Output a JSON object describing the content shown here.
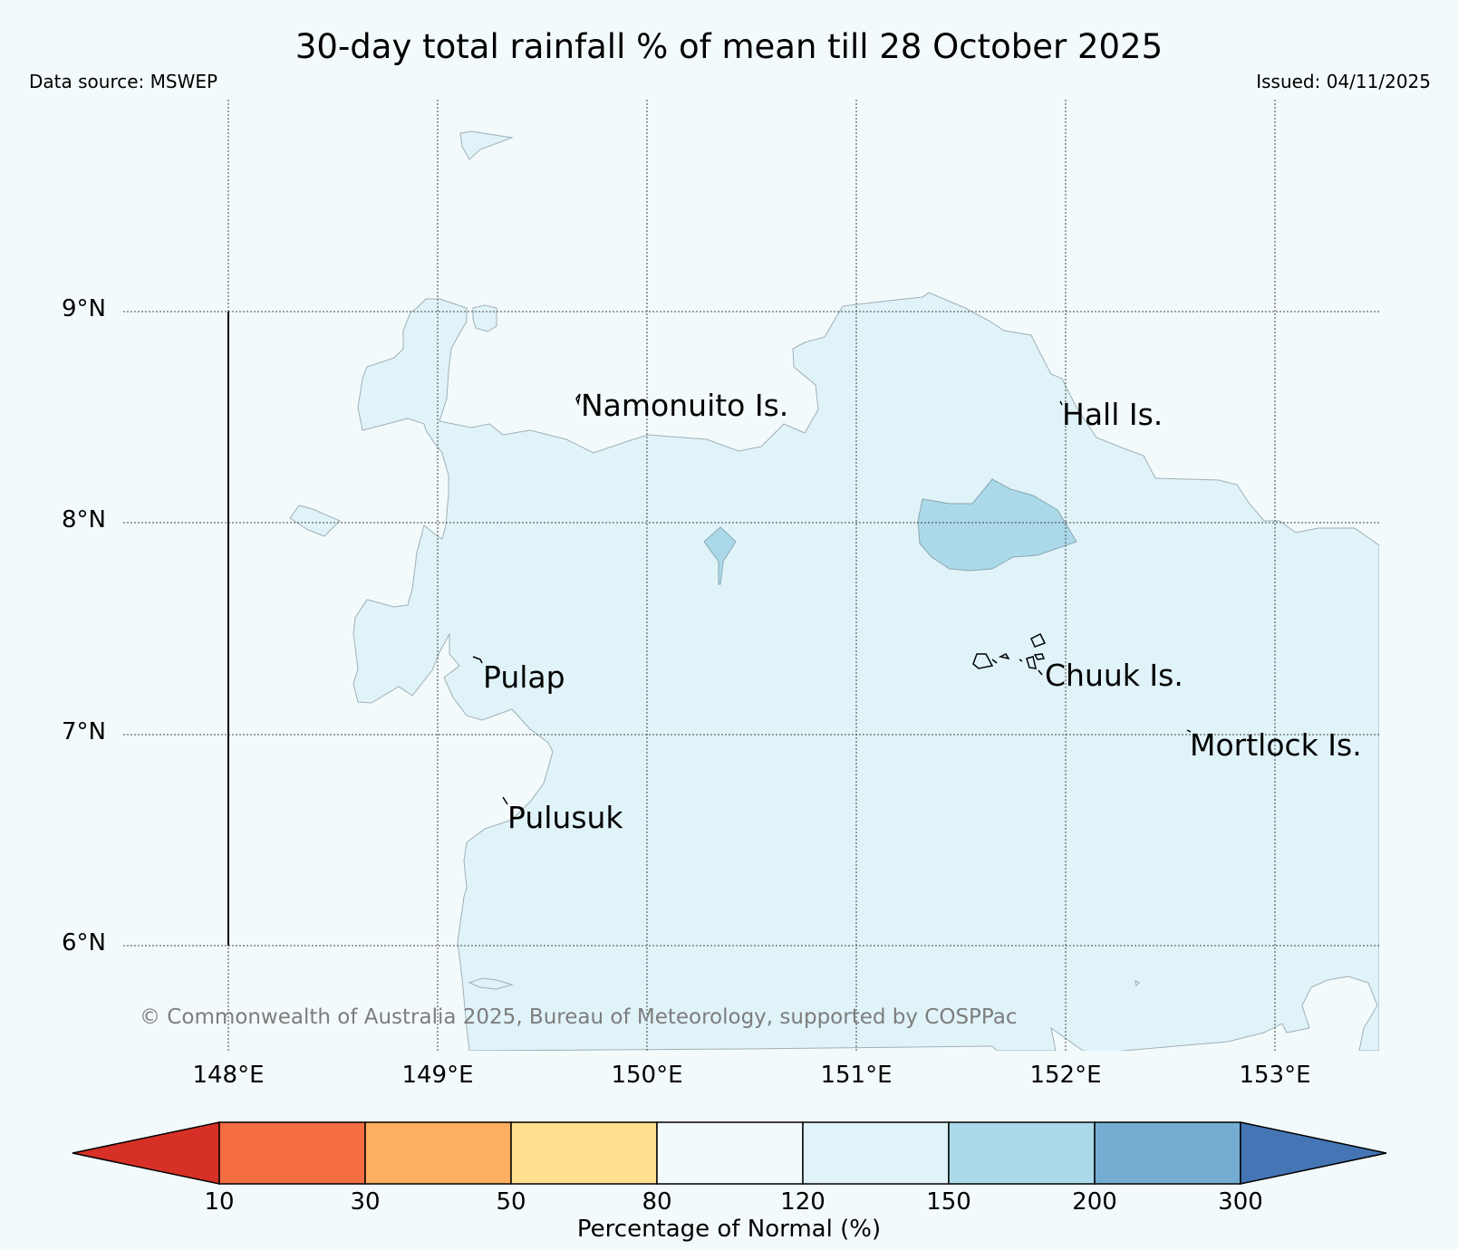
{
  "title": "30-day total rainfall % of mean till 28 October 2025",
  "data_source": "Data source: MSWEP",
  "issued": "Issued: 04/11/2025",
  "copyright": "© Commonwealth of Australia 2025, Bureau of Meteorology, supported by COSPPac",
  "latitude_labels": [
    "9°N",
    "8°N",
    "7°N",
    "6°N"
  ],
  "longitude_labels": [
    "148°E",
    "149°E",
    "150°E",
    "151°E",
    "152°E",
    "153°E"
  ],
  "places": {
    "namonuito": "Namonuito Is.",
    "hall": "Hall Is.",
    "pulap": "Pulap",
    "chuuk": "Chuuk Is.",
    "mortlock": "Mortlock Is.",
    "pulusuk": "Pulusuk"
  },
  "colorbar": {
    "title": "Percentage of Normal (%)",
    "ticks": [
      "10",
      "30",
      "50",
      "80",
      "120",
      "150",
      "200",
      "300"
    ],
    "colors": [
      "#d73027",
      "#f46d43",
      "#fdae61",
      "#fee090",
      "#f3fafc",
      "#e0f3f8",
      "#abd9e9",
      "#74add1",
      "#4575b4"
    ]
  },
  "colors": {
    "background": "#f3fafc",
    "class_120_150": "#e0f3f8",
    "class_150_200": "#abd9e9"
  }
}
